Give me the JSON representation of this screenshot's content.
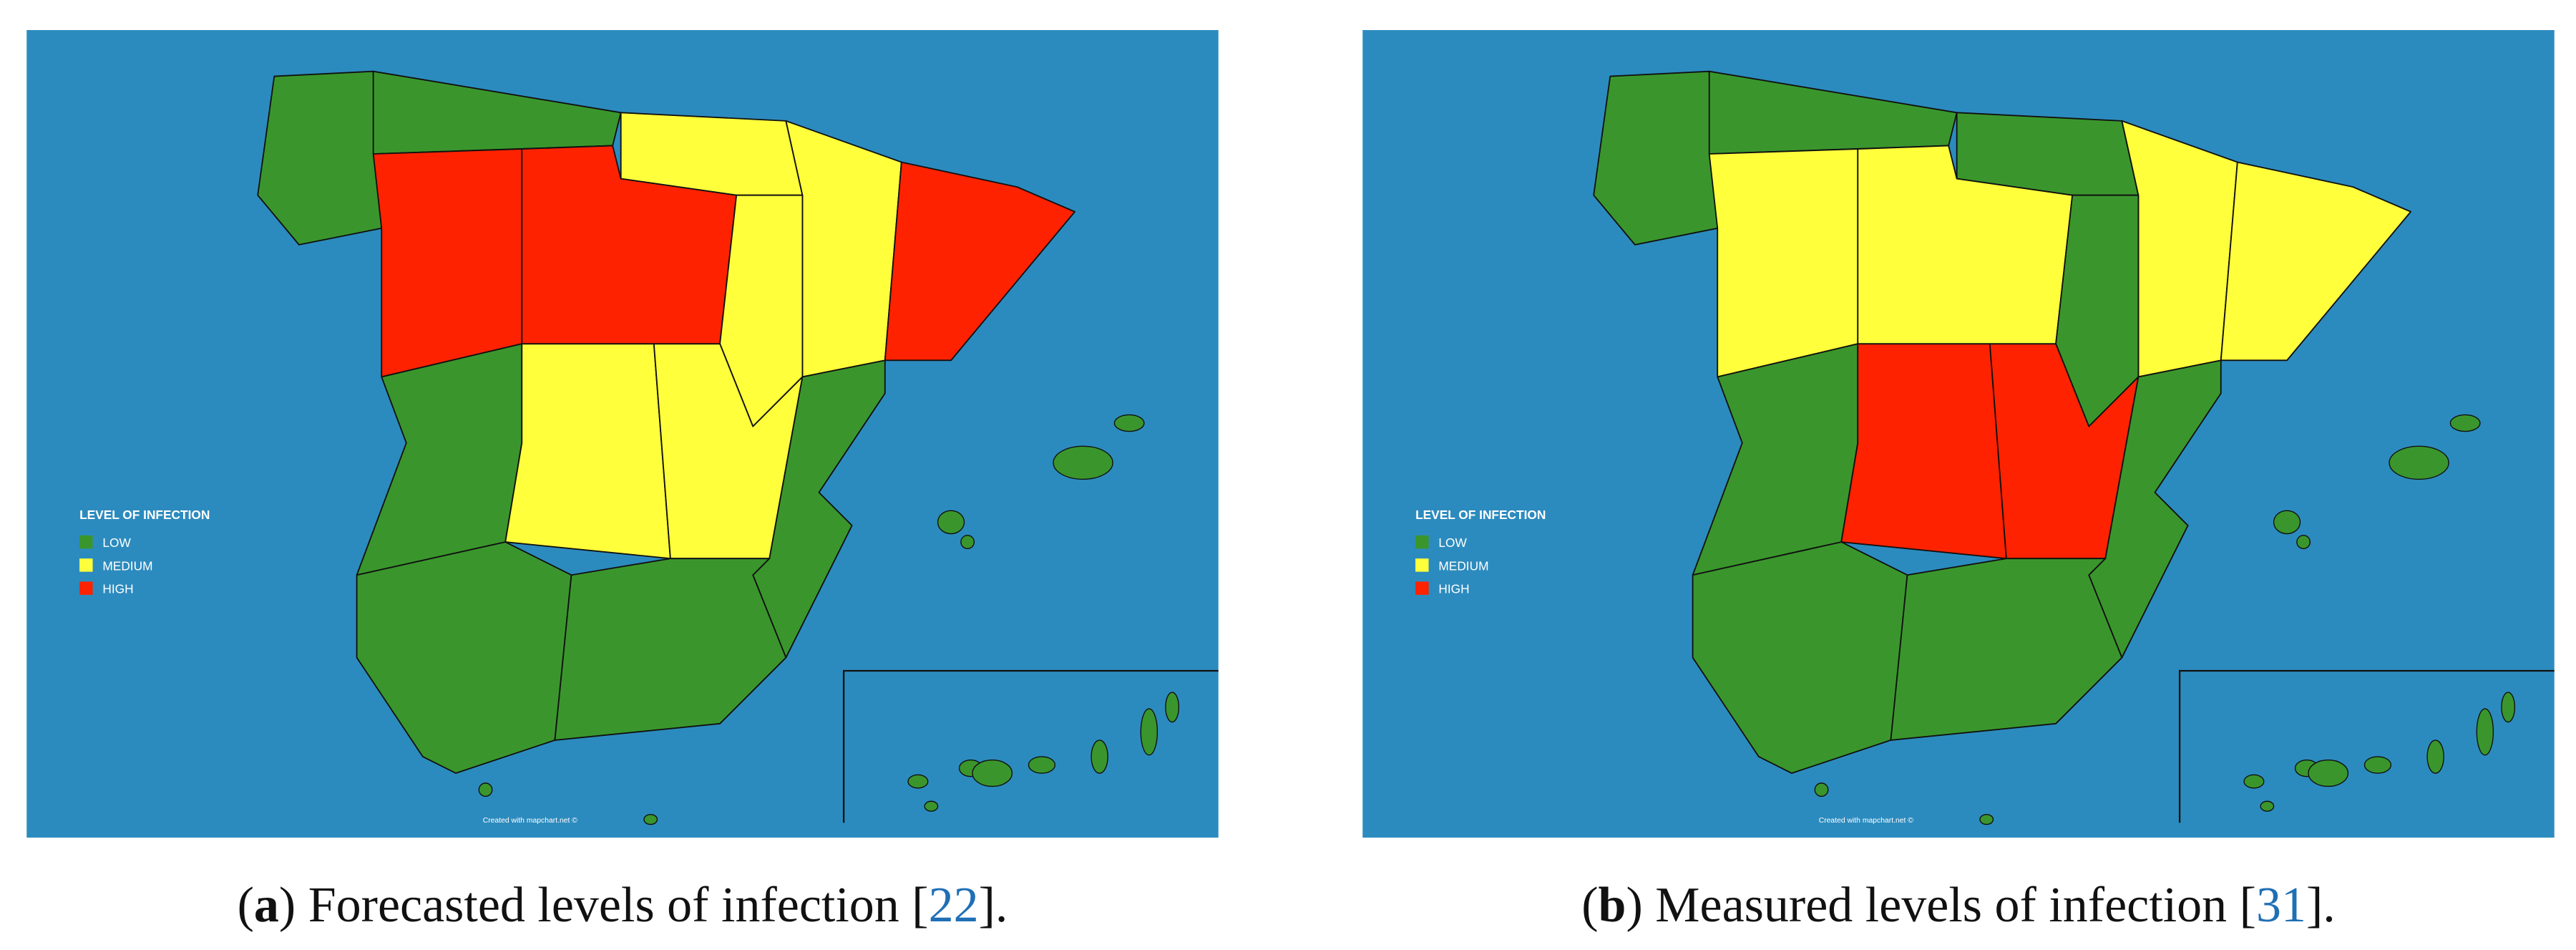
{
  "panels": [
    {
      "legend": {
        "title": "LEVEL OF INFECTION",
        "items": [
          {
            "label": "LOW",
            "color": "#3a962c"
          },
          {
            "label": "MEDIUM",
            "color": "#ffff3c"
          },
          {
            "label": "HIGH",
            "color": "#ff2200"
          }
        ]
      },
      "credit": "Created with mapchart.net ©",
      "region_levels": [
        0,
        0,
        1,
        1,
        2,
        2,
        2,
        1,
        0,
        1,
        1,
        0,
        0,
        0
      ],
      "caption": [
        {
          "text": "("
        },
        {
          "text": "a",
          "bold": true
        },
        {
          "text": ") Forecasted levels of infection ["
        },
        {
          "text": "22",
          "link": true
        },
        {
          "text": "]."
        }
      ]
    },
    {
      "legend": {
        "title": "LEVEL OF INFECTION",
        "items": [
          {
            "label": "LOW",
            "color": "#3a962c"
          },
          {
            "label": "MEDIUM",
            "color": "#ffff3c"
          },
          {
            "label": "HIGH",
            "color": "#ff2200"
          }
        ]
      },
      "credit": "Created with mapchart.net ©",
      "region_levels": [
        0,
        0,
        0,
        1,
        1,
        1,
        1,
        0,
        0,
        2,
        2,
        0,
        0,
        0
      ],
      "caption": [
        {
          "text": "("
        },
        {
          "text": "b",
          "bold": true
        },
        {
          "text": ") Measured levels of infection ["
        },
        {
          "text": "31",
          "link": true
        },
        {
          "text": "]."
        }
      ]
    }
  ]
}
